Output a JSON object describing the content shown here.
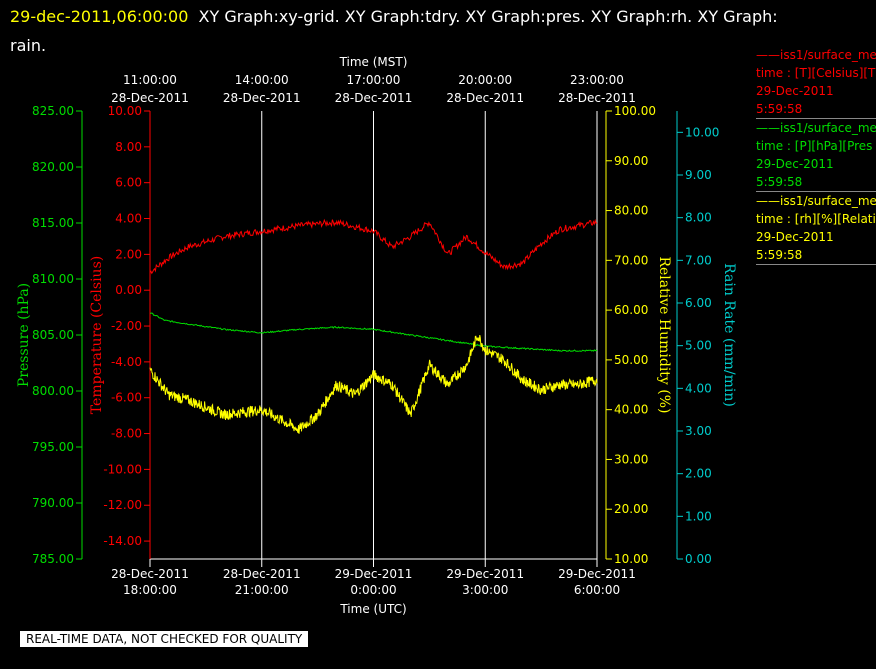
{
  "header": {
    "timestamp": "29-dec-2011,06:00:00",
    "titles": "XY Graph:xy-grid.  XY Graph:tdry.  XY Graph:pres.  XY Graph:rh.  XY Graph:",
    "line2": "rain."
  },
  "legend": [
    {
      "line1": "——iss1/surface_me",
      "line2": "time : [T][Celsius][T",
      "line3": "29-Dec-2011",
      "line4": "5:59:58",
      "color": "#ff0000"
    },
    {
      "line1": "——iss1/surface_me",
      "line2": "time : [P][hPa][Pres",
      "line3": "29-Dec-2011",
      "line4": "5:59:58",
      "color": "#00dd00"
    },
    {
      "line1": "——iss1/surface_me",
      "line2": "time : [rh][%][Relati",
      "line3": "29-Dec-2011",
      "line4": "5:59:58",
      "color": "#ffff00"
    }
  ],
  "footer": "REAL-TIME DATA, NOT CHECKED FOR QUALITY",
  "colors": {
    "temperature": "#ff0000",
    "pressure": "#00dd00",
    "humidity": "#ffff00",
    "rain": "#00cccc",
    "grid": "#ffffff"
  },
  "chart_data": {
    "type": "line",
    "x_utc_ticks": [
      {
        "date": "28-Dec-2011",
        "time": "18:00:00"
      },
      {
        "date": "28-Dec-2011",
        "time": "21:00:00"
      },
      {
        "date": "29-Dec-2011",
        "time": "0:00:00"
      },
      {
        "date": "29-Dec-2011",
        "time": "3:00:00"
      },
      {
        "date": "29-Dec-2011",
        "time": "6:00:00"
      }
    ],
    "x_mst_ticks": [
      {
        "time": "11:00:00",
        "date": "28-Dec-2011"
      },
      {
        "time": "14:00:00",
        "date": "28-Dec-2011"
      },
      {
        "time": "17:00:00",
        "date": "28-Dec-2011"
      },
      {
        "time": "20:00:00",
        "date": "28-Dec-2011"
      },
      {
        "time": "23:00:00",
        "date": "28-Dec-2011"
      }
    ],
    "xlabel_top": "Time (MST)",
    "xlabel_bottom": "Time (UTC)",
    "xlim": [
      "28-Dec-2011 18:00:00 UTC",
      "29-Dec-2011 06:00:00 UTC"
    ],
    "grid": true,
    "axes": {
      "pressure": {
        "label": "Pressure (hPa)",
        "ylim": [
          785,
          825
        ],
        "ticks": [
          "825.00",
          "820.00",
          "815.00",
          "810.00",
          "805.00",
          "800.00",
          "795.00",
          "790.00",
          "785.00"
        ]
      },
      "temperature": {
        "label": "Temperature (Celsius)",
        "ylim": [
          -15,
          10
        ],
        "ticks": [
          "10.00",
          "8.00",
          "6.00",
          "4.00",
          "2.00",
          "0.00",
          "-2.00",
          "-4.00",
          "-6.00",
          "-8.00",
          "-10.00",
          "-12.00",
          "-14.00"
        ]
      },
      "humidity": {
        "label": "Relative Humidity (%)",
        "ylim": [
          10,
          100
        ],
        "ticks": [
          "100.00",
          "90.00",
          "80.00",
          "70.00",
          "60.00",
          "50.00",
          "40.00",
          "30.00",
          "20.00",
          "10.00"
        ]
      },
      "rain": {
        "label": "Rain Rate (mm/min)",
        "ylim": [
          0,
          10.5
        ],
        "ticks": [
          "10.00",
          "9.00",
          "8.00",
          "7.00",
          "6.00",
          "5.00",
          "4.00",
          "3.00",
          "2.00",
          "1.00",
          "0.00"
        ]
      }
    },
    "series": [
      {
        "key": "temperature",
        "hours": [
          0,
          0.5,
          1,
          2,
          3,
          4,
          5,
          6,
          6.5,
          7,
          7.5,
          8,
          8.5,
          9,
          9.5,
          10,
          10.5,
          11,
          11.5,
          12
        ],
        "values": [
          1.0,
          1.8,
          2.4,
          3.0,
          3.3,
          3.6,
          3.8,
          3.3,
          2.4,
          3.0,
          3.8,
          2.0,
          3.0,
          2.1,
          1.3,
          1.5,
          2.6,
          3.4,
          3.6,
          3.8
        ]
      },
      {
        "key": "pressure",
        "hours": [
          0,
          0.4,
          1,
          2,
          3,
          4,
          5,
          6,
          7,
          8,
          9,
          10,
          11,
          12
        ],
        "values": [
          807.0,
          806.3,
          806.0,
          805.5,
          805.2,
          805.5,
          805.7,
          805.5,
          805.0,
          804.5,
          804.0,
          803.8,
          803.6,
          803.6
        ]
      },
      {
        "key": "humidity",
        "hours": [
          0,
          0.5,
          1,
          2,
          3,
          3.5,
          4,
          4.5,
          5,
          5.5,
          6,
          6.5,
          7,
          7.5,
          8,
          8.5,
          8.8,
          9,
          9.5,
          10,
          10.5,
          11,
          11.5,
          12
        ],
        "values": [
          48,
          43,
          42,
          39,
          40,
          38,
          36,
          39,
          45,
          43,
          47,
          45,
          39,
          49,
          45,
          49,
          55,
          52,
          50,
          46,
          44,
          45,
          45,
          46
        ]
      }
    ]
  }
}
